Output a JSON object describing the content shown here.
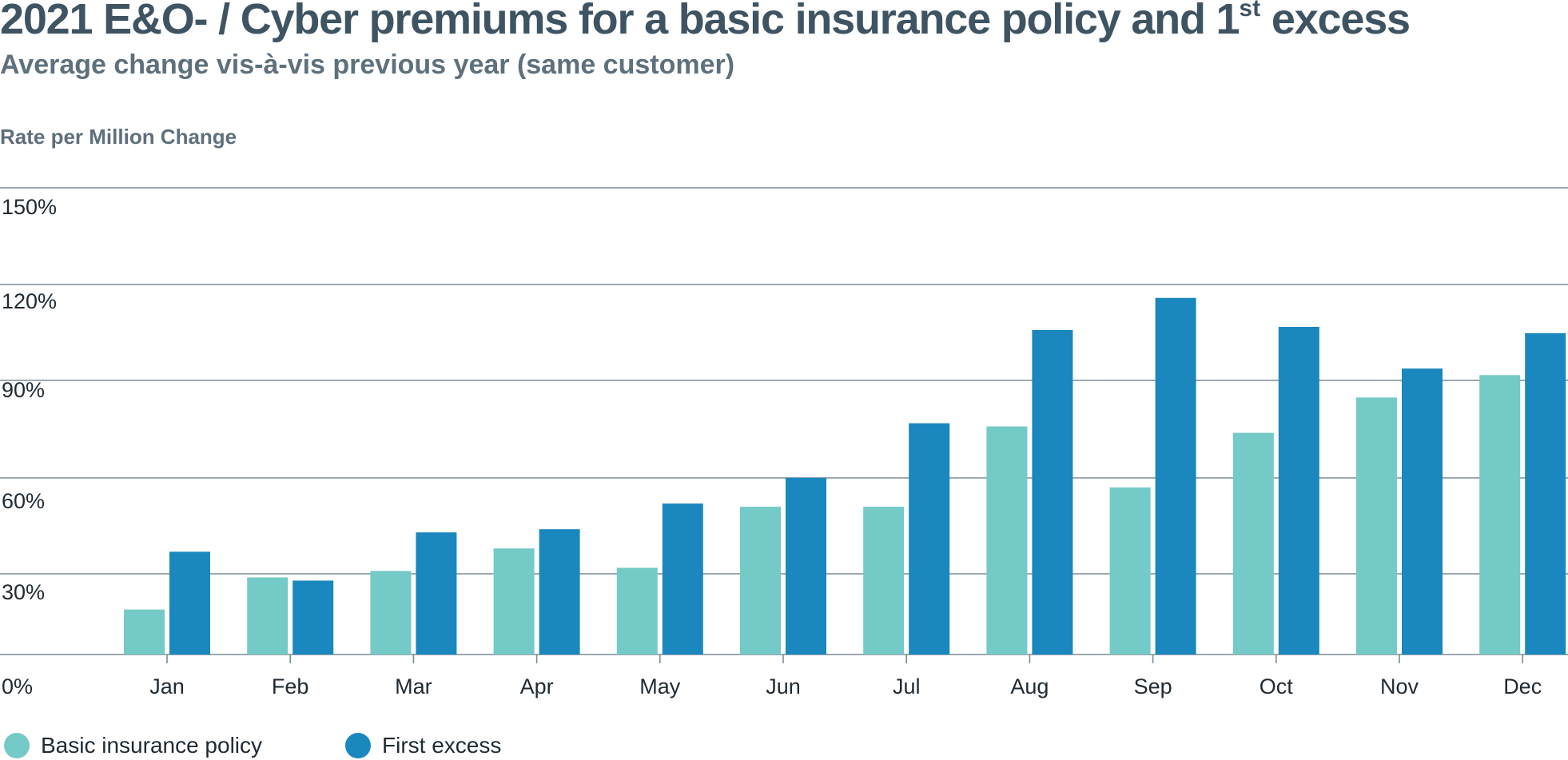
{
  "chart_data": {
    "type": "bar",
    "title": "2021 E&O- / Cyber premiums for a basic insurance policy and 1",
    "title_sup": "st",
    "title_suffix": " excess",
    "subtitle": "Average change vis-à-vis previous year (same customer)",
    "ylabel": "Rate per Million Change",
    "xlabel": "",
    "categories": [
      "Jan",
      "Feb",
      "Mar",
      "Apr",
      "May",
      "Jun",
      "Jul",
      "Aug",
      "Sep",
      "Oct",
      "Nov",
      "Dec"
    ],
    "series": [
      {
        "name": "Basic insurance policy",
        "color": "#73cac6",
        "values": [
          14,
          24,
          26,
          33,
          27,
          46,
          46,
          71,
          52,
          69,
          80,
          87
        ]
      },
      {
        "name": "First excess",
        "color": "#1a87be",
        "values": [
          32,
          23,
          38,
          39,
          47,
          55,
          72,
          101,
          111,
          102,
          89,
          100
        ]
      }
    ],
    "yticks": [
      {
        "value": 0,
        "label": "0%"
      },
      {
        "value": 30,
        "label": "30%"
      },
      {
        "value": 60,
        "label": "60%"
      },
      {
        "value": 90,
        "label": "90%"
      },
      {
        "value": 120,
        "label": "120%"
      },
      {
        "value": 150,
        "label": "150%"
      }
    ],
    "ylim": [
      0,
      150
    ],
    "grid": true,
    "legend_position": "bottom-left"
  }
}
